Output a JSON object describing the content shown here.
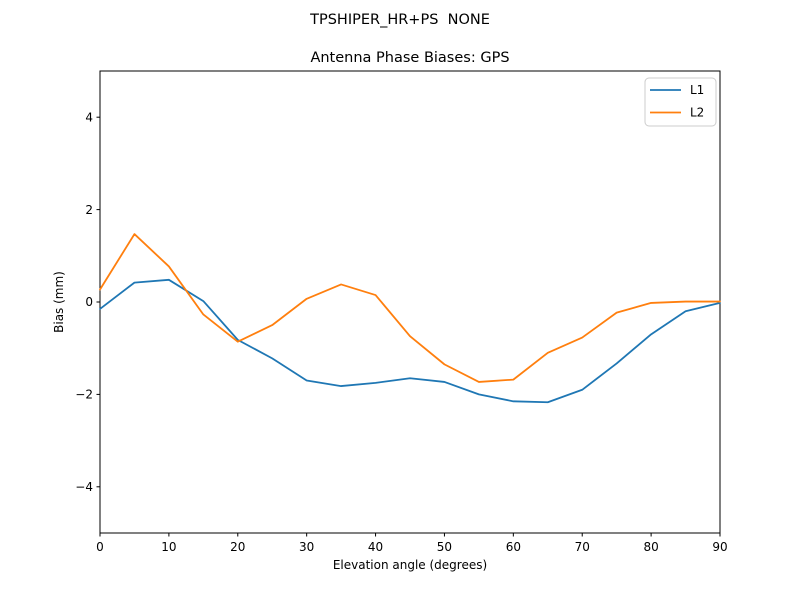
{
  "chart_data": {
    "type": "line",
    "suptitle": "TPSHIPER_HR+PS  NONE",
    "title": "Antenna Phase Biases: GPS",
    "xlabel": "Elevation angle (degrees)",
    "ylabel": "Bias (mm)",
    "xlim": [
      0,
      90
    ],
    "ylim": [
      -5,
      5
    ],
    "grid": false,
    "legend_position": "upper right",
    "x_ticks": [
      0,
      10,
      20,
      30,
      40,
      50,
      60,
      70,
      80,
      90
    ],
    "x_tick_labels": [
      "0",
      "10",
      "20",
      "30",
      "40",
      "50",
      "60",
      "70",
      "80",
      "90"
    ],
    "y_ticks": [
      -4,
      -2,
      0,
      2,
      4
    ],
    "y_tick_labels": [
      "−4",
      "−2",
      "0",
      "2",
      "4"
    ],
    "x": [
      0,
      5,
      10,
      15,
      20,
      25,
      30,
      35,
      40,
      45,
      50,
      55,
      60,
      65,
      70,
      75,
      80,
      85,
      90
    ],
    "series": [
      {
        "name": "L1",
        "color": "#1f77b4",
        "values": [
          -0.15,
          0.42,
          0.48,
          0.02,
          -0.82,
          -1.22,
          -1.7,
          -1.82,
          -1.75,
          -1.65,
          -1.73,
          -2.0,
          -2.15,
          -2.17,
          -1.9,
          -1.33,
          -0.7,
          -0.2,
          -0.02
        ]
      },
      {
        "name": "L2",
        "color": "#ff7f0e",
        "values": [
          0.27,
          1.47,
          0.77,
          -0.27,
          -0.86,
          -0.5,
          0.07,
          0.38,
          0.15,
          -0.74,
          -1.35,
          -1.73,
          -1.68,
          -1.1,
          -0.77,
          -0.23,
          -0.02,
          0.01,
          0.01
        ]
      }
    ]
  },
  "legend": {
    "entries": [
      {
        "label": "L1",
        "color": "#1f77b4"
      },
      {
        "label": "L2",
        "color": "#ff7f0e"
      }
    ]
  }
}
